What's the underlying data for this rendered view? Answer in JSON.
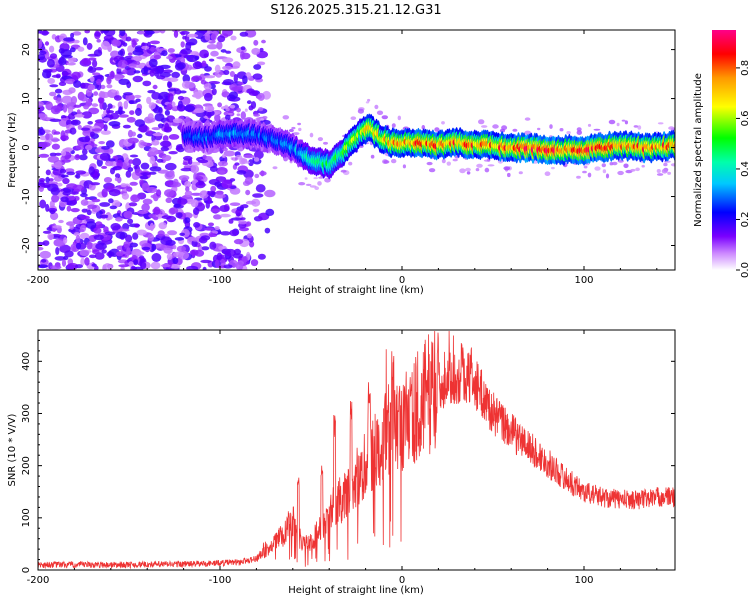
{
  "chart_data": [
    {
      "type": "heatmap",
      "title": "S126.2025.315.21.12.G31",
      "xlabel": "Height of straight line (km)",
      "ylabel": "Frequency (Hz)",
      "xlim": [
        -200,
        150
      ],
      "ylim": [
        -25,
        24
      ],
      "x_ticks": [
        -200,
        -100,
        0,
        100
      ],
      "x_tick_labels": [
        "-200",
        "-100",
        "0",
        "100"
      ],
      "y_ticks": [
        20,
        10,
        0,
        -10,
        -20
      ],
      "y_tick_labels": [
        "20",
        "10",
        "0",
        "-10",
        "-20"
      ],
      "colorbar": {
        "label": "Normalized spectral amplitude",
        "range": [
          0,
          0.95
        ],
        "ticks": [
          0.0,
          0.2,
          0.4,
          0.6,
          0.8
        ],
        "tick_labels": [
          "0.0",
          "0.2",
          "0.4",
          "0.6",
          "0.8"
        ],
        "colors": [
          "#ffffff",
          "#7a00ff",
          "#0000ff",
          "#00ffff",
          "#00ff00",
          "#ffff00",
          "#ff8000",
          "#ff0000",
          "#ff0080"
        ]
      },
      "noise_region_x": [
        -200,
        -80
      ],
      "ridge_x": [
        -120,
        -110,
        -100,
        -90,
        -80,
        -70,
        -60,
        -55,
        -50,
        -45,
        -40,
        -35,
        -30,
        -25,
        -20,
        -18,
        -15,
        -10,
        -5,
        0,
        10,
        20,
        30,
        40,
        50,
        60,
        70,
        80,
        90,
        100,
        110,
        120,
        130,
        140,
        150
      ],
      "ridge_freq": [
        2.5,
        2,
        2.5,
        3,
        2.5,
        1.5,
        0,
        -1.5,
        -2.5,
        -3,
        -3.5,
        -2,
        0,
        2,
        3.8,
        4,
        3,
        1.5,
        1,
        1,
        1,
        0.5,
        1,
        0.5,
        0.5,
        0,
        0,
        -0.5,
        -0.5,
        -0.5,
        0,
        0.5,
        0,
        0,
        0.5
      ],
      "ridge_amp": [
        0.25,
        0.3,
        0.35,
        0.35,
        0.3,
        0.3,
        0.35,
        0.4,
        0.45,
        0.5,
        0.5,
        0.55,
        0.6,
        0.65,
        0.7,
        0.75,
        0.7,
        0.75,
        0.8,
        0.8,
        0.85,
        0.85,
        0.85,
        0.85,
        0.85,
        0.85,
        0.9,
        0.9,
        0.9,
        0.9,
        0.9,
        0.9,
        0.9,
        0.85,
        0.85
      ]
    },
    {
      "type": "line",
      "xlabel": "Height of straight line (km)",
      "ylabel": "SNR (10 * V/V)",
      "xlim": [
        -200,
        150
      ],
      "ylim": [
        0,
        460
      ],
      "x_ticks": [
        -200,
        -100,
        0,
        100
      ],
      "x_tick_labels": [
        "-200",
        "-100",
        "0",
        "100"
      ],
      "y_ticks": [
        0,
        100,
        200,
        300,
        400
      ],
      "y_tick_labels": [
        "0",
        "100",
        "200",
        "300",
        "400"
      ],
      "color": "#ee3333",
      "envelope_x": [
        -200,
        -150,
        -110,
        -90,
        -80,
        -75,
        -70,
        -65,
        -60,
        -55,
        -50,
        -45,
        -40,
        -35,
        -30,
        -25,
        -20,
        -15,
        -10,
        -5,
        0,
        5,
        10,
        15,
        20,
        25,
        30,
        35,
        40,
        45,
        50,
        60,
        70,
        80,
        90,
        100,
        110,
        120,
        130,
        140,
        150
      ],
      "envelope_y": [
        10,
        10,
        12,
        15,
        22,
        35,
        50,
        70,
        95,
        50,
        55,
        80,
        110,
        130,
        150,
        175,
        200,
        225,
        255,
        270,
        280,
        300,
        320,
        340,
        350,
        365,
        370,
        370,
        360,
        330,
        300,
        265,
        235,
        205,
        175,
        150,
        140,
        135,
        135,
        140,
        140
      ],
      "spikes": [
        [
          -57,
          190
        ],
        [
          -44,
          205
        ],
        [
          -37,
          300
        ],
        [
          -28,
          330
        ],
        [
          -18,
          360
        ],
        [
          -5,
          420
        ],
        [
          5,
          380
        ],
        [
          33,
          450
        ],
        [
          38,
          430
        ]
      ]
    }
  ]
}
